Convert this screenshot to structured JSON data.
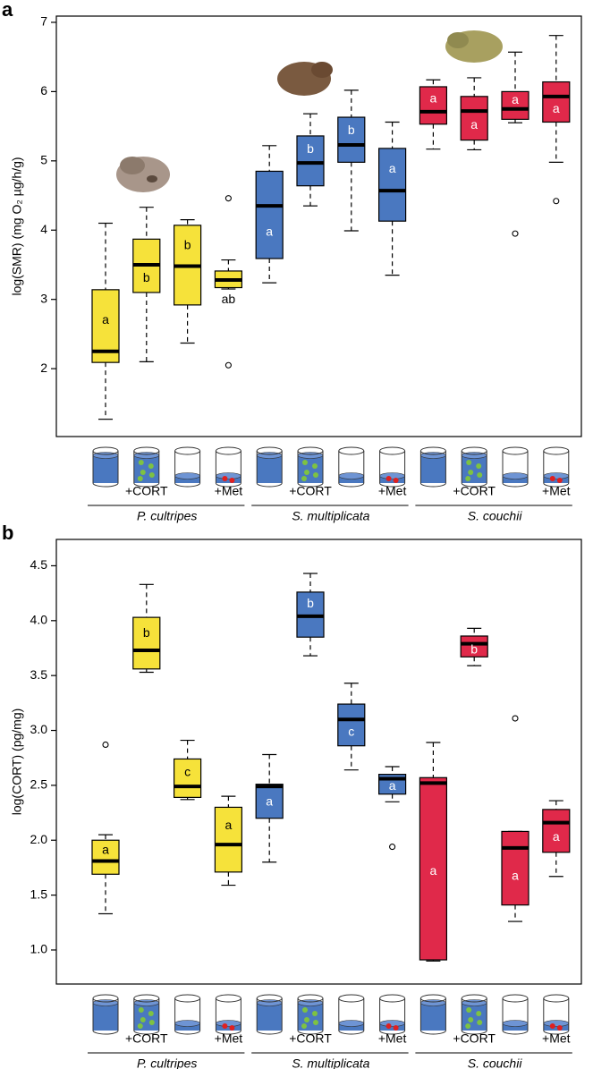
{
  "chart_data": [
    {
      "type": "box",
      "panel_label": "a",
      "y_label": "log(SMR) (mg O₂ µg/h/g)",
      "ylim": [
        1.02,
        7.09
      ],
      "yticks": [
        2,
        3,
        4,
        5,
        6,
        7
      ],
      "categories": [
        null,
        "+CORT",
        null,
        "+Met"
      ],
      "series": [
        {
          "name": "P. cultripes",
          "color": "#f6e23a",
          "letter_color": "#000000",
          "low": [
            1.27,
            2.1,
            2.37,
            3.15
          ],
          "q1": [
            2.09,
            3.1,
            2.92,
            3.17
          ],
          "median": [
            2.25,
            3.5,
            3.48,
            3.28
          ],
          "q3": [
            3.14,
            3.87,
            4.07,
            3.41
          ],
          "high": [
            4.1,
            4.33,
            4.15,
            3.57
          ],
          "outliers": [
            [],
            [],
            [],
            [
              4.46,
              2.05
            ]
          ],
          "letters": [
            "a",
            "b",
            "b",
            "ab"
          ]
        },
        {
          "name": "S. multiplicata",
          "color": "#4a78c0",
          "letter_color": "#ffffff",
          "low": [
            3.24,
            4.35,
            3.99,
            3.35
          ],
          "q1": [
            3.59,
            4.64,
            4.98,
            4.13
          ],
          "median": [
            4.35,
            4.97,
            5.23,
            4.57
          ],
          "q3": [
            4.85,
            5.36,
            5.63,
            5.18
          ],
          "high": [
            5.22,
            5.68,
            6.02,
            5.56
          ],
          "outliers": [
            [],
            [],
            [],
            []
          ],
          "letters": [
            "a",
            "b",
            "b",
            "a"
          ]
        },
        {
          "name": "S. couchii",
          "color": "#e0294a",
          "letter_color": "#ffffff",
          "low": [
            5.17,
            5.16,
            5.55,
            4.98
          ],
          "q1": [
            5.53,
            5.3,
            5.6,
            5.56
          ],
          "median": [
            5.71,
            5.72,
            5.75,
            5.93
          ],
          "q3": [
            6.07,
            5.93,
            6.0,
            6.14
          ],
          "high": [
            6.17,
            6.2,
            6.57,
            6.81
          ],
          "outliers": [
            [],
            [],
            [
              3.95
            ],
            [
              4.42
            ]
          ],
          "letters": [
            "a",
            "a",
            "a",
            "a"
          ]
        }
      ]
    },
    {
      "type": "box",
      "panel_label": "b",
      "y_label": "log(CORT) (pg/mg)",
      "ylim": [
        0.69,
        4.74
      ],
      "yticks": [
        {
          "value": 1,
          "label": "1.0"
        },
        1.5,
        {
          "value": 2,
          "label": "2.0"
        },
        2.5,
        {
          "value": 3,
          "label": "3.0"
        },
        3.5,
        {
          "value": 4,
          "label": "4.0"
        },
        4.5
      ],
      "categories": [
        null,
        "+CORT",
        null,
        "+Met"
      ],
      "series": [
        {
          "name": "P. cultripes",
          "color": "#f6e23a",
          "letter_color": "#000000",
          "low": [
            1.33,
            3.53,
            2.37,
            1.59
          ],
          "q1": [
            1.69,
            3.56,
            2.39,
            1.71
          ],
          "median": [
            1.81,
            3.73,
            2.49,
            1.96
          ],
          "q3": [
            2.0,
            4.03,
            2.74,
            2.3
          ],
          "high": [
            2.05,
            4.33,
            2.91,
            2.4
          ],
          "outliers": [
            [
              2.87
            ],
            [],
            [],
            []
          ],
          "letters": [
            "a",
            "b",
            "c",
            "a"
          ]
        },
        {
          "name": "S. multiplicata",
          "color": "#4a78c0",
          "letter_color": "#ffffff",
          "low": [
            1.8,
            3.68,
            2.64,
            2.35
          ],
          "q1": [
            2.2,
            3.85,
            2.86,
            2.42
          ],
          "median": [
            2.49,
            4.04,
            3.1,
            2.56
          ],
          "q3": [
            2.51,
            4.26,
            3.24,
            2.6
          ],
          "high": [
            2.78,
            4.43,
            3.43,
            2.67
          ],
          "outliers": [
            [],
            [],
            [],
            [
              1.94
            ]
          ],
          "letters": [
            "a",
            "b",
            "c",
            "a"
          ]
        },
        {
          "name": "S. couchii",
          "color": "#e0294a",
          "letter_color": "#ffffff",
          "low": [
            0.9,
            3.59,
            1.26,
            1.67
          ],
          "q1": [
            0.91,
            3.67,
            1.41,
            1.89
          ],
          "median": [
            2.52,
            3.79,
            1.93,
            2.16
          ],
          "q3": [
            2.57,
            3.86,
            2.08,
            2.28
          ],
          "high": [
            2.89,
            3.93,
            2.08,
            2.36
          ],
          "outliers": [
            [],
            [],
            [
              3.11
            ],
            []
          ],
          "letters": [
            "a",
            "b",
            "a",
            "a"
          ]
        }
      ]
    }
  ]
}
